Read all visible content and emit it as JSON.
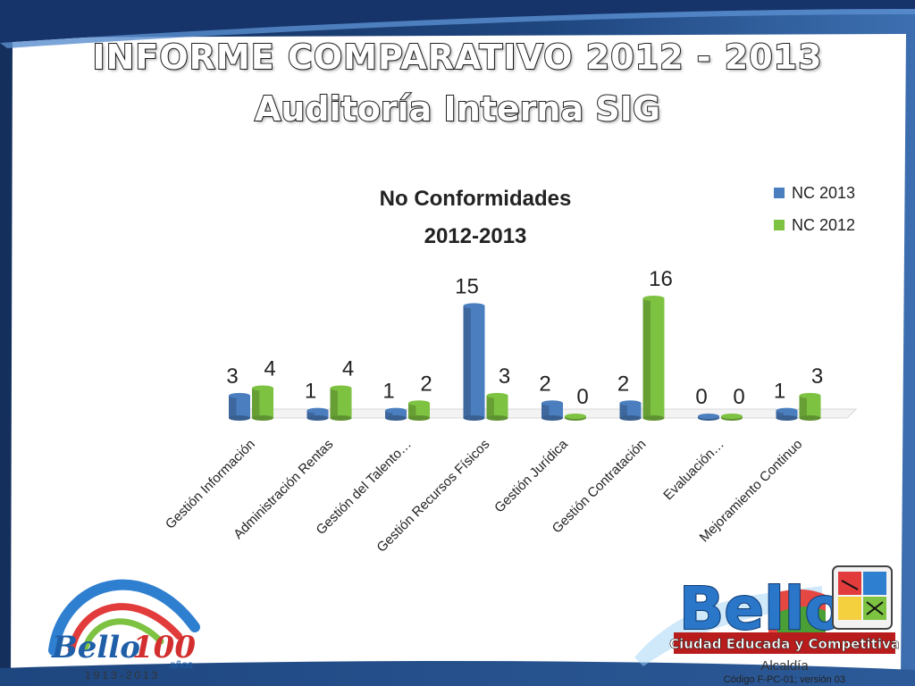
{
  "slide": {
    "title_line1": "INFORME COMPARATIVO 2012 - 2013",
    "title_line2": "Auditoría Interna SIG",
    "footer_code": "Código F-PC-01; versión 03"
  },
  "logos": {
    "centenary_text": "Bello",
    "centenary_number": "100",
    "centenary_years": "años",
    "centenary_range": "1913-2013",
    "city_name": "Bello",
    "city_slogan": "Ciudad Educada y Competitiva",
    "city_office": "Alcaldía"
  },
  "colors": {
    "nc2013": "#4a7ebf",
    "nc2012": "#7dc241",
    "frame_dark": "#1b3a6b",
    "frame_light": "#4c7fc0"
  },
  "chart_data": {
    "type": "bar",
    "title": "No Conformidades\n2012-2013",
    "categories": [
      "Gestión Información",
      "Administración Rentas",
      "Gestión del Talento…",
      "Gestión Recursos Físicos",
      "Gestión Jurídica",
      "Gestión Contratación",
      "Evaluación…",
      "Mejoramiento Continuo"
    ],
    "series": [
      {
        "name": "NC 2013",
        "values": [
          3,
          1,
          1,
          15,
          2,
          2,
          0,
          1
        ]
      },
      {
        "name": "NC 2012",
        "values": [
          4,
          4,
          2,
          3,
          0,
          16,
          0,
          3
        ]
      }
    ],
    "ylim": [
      0,
      16
    ],
    "data_labels": true,
    "legend": "top-right",
    "grid": false,
    "style": "3d-cylinder"
  }
}
